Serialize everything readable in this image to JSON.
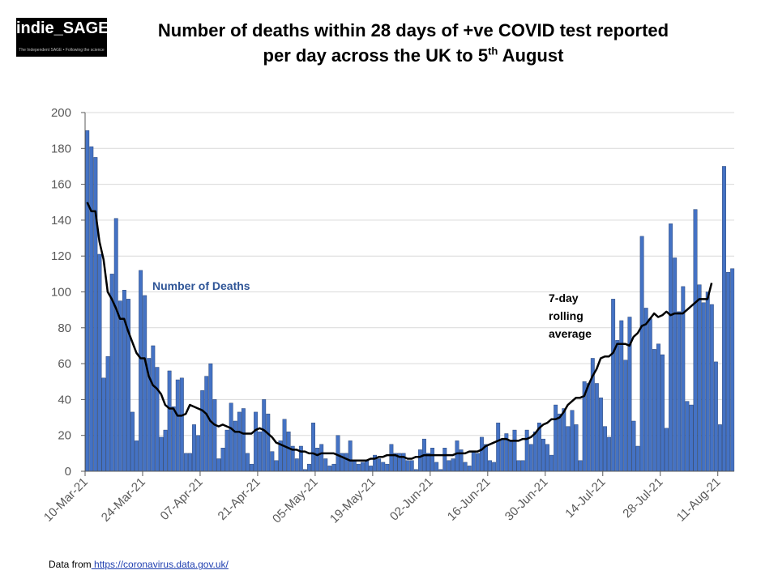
{
  "logo": {
    "text": "indie_SAGE",
    "tagline": "The Independent SAGE • Following the science"
  },
  "title": {
    "line1": "Number of deaths within 28 days of +ve COVID test reported",
    "line2_pre": "per day across the UK to 5",
    "line2_sup": "th",
    "line2_post": " August"
  },
  "footer": {
    "prefix": "Data from",
    "link": " https://coronavirus.data.gov.uk/"
  },
  "colors": {
    "bar_fill": "#4472c4",
    "bar_edge": "#1f3864",
    "line": "#000000",
    "series_label": "#2f5597",
    "grid": "#d9d9d9"
  },
  "chart_data": {
    "type": "bar",
    "title": "Number of deaths within 28 days of +ve COVID test reported per day across the UK to 5th August",
    "xlabel": "",
    "ylabel": "",
    "ylim": [
      0,
      200
    ],
    "yticks": [
      0,
      20,
      40,
      60,
      80,
      100,
      120,
      140,
      160,
      180,
      200
    ],
    "grid": true,
    "x_start_date": "10-Mar-21",
    "x_tick_labels": [
      "10-Mar-21",
      "24-Mar-21",
      "07-Apr-21",
      "21-Apr-21",
      "05-May-21",
      "19-May-21",
      "02-Jun-21",
      "16-Jun-21",
      "30-Jun-21",
      "14-Jul-21",
      "28-Jul-21",
      "11-Aug-21"
    ],
    "series": [
      {
        "name": "Number of Deaths",
        "type": "bar",
        "values": [
          190,
          181,
          175,
          121,
          52,
          64,
          110,
          141,
          95,
          101,
          96,
          33,
          17,
          112,
          98,
          63,
          70,
          58,
          19,
          23,
          56,
          36,
          51,
          52,
          10,
          10,
          26,
          20,
          45,
          53,
          60,
          40,
          7,
          13,
          23,
          38,
          28,
          33,
          35,
          10,
          4,
          33,
          22,
          40,
          32,
          11,
          6,
          17,
          29,
          22,
          14,
          7,
          14,
          1,
          4,
          27,
          13,
          15,
          7,
          3,
          4,
          20,
          10,
          10,
          17,
          6,
          4,
          5,
          6,
          3,
          9,
          7,
          5,
          4,
          15,
          10,
          10,
          10,
          6,
          6,
          1,
          12,
          18,
          10,
          13,
          5,
          1,
          13,
          6,
          7,
          17,
          12,
          5,
          3,
          11,
          10,
          19,
          15,
          6,
          5,
          27,
          18,
          21,
          17,
          23,
          6,
          6,
          23,
          15,
          22,
          27,
          18,
          15,
          9,
          37,
          32,
          35,
          25,
          34,
          26,
          6,
          50,
          49,
          63,
          49,
          41,
          25,
          19,
          96,
          73,
          84,
          62,
          86,
          28,
          14,
          131,
          91,
          85,
          68,
          71,
          65,
          24,
          138,
          119,
          89,
          103,
          39,
          37,
          146,
          104,
          94,
          100,
          93,
          61,
          26,
          170,
          111,
          113
        ]
      },
      {
        "name": "7-day rolling average",
        "type": "line",
        "values": [
          150,
          145,
          145,
          128,
          118,
          100,
          96,
          91,
          85,
          85,
          78,
          72,
          66,
          63,
          63,
          53,
          48,
          46,
          43,
          37,
          35,
          35,
          31,
          31,
          32,
          37,
          36,
          35,
          34,
          32,
          28,
          26,
          25,
          26,
          25,
          24,
          22,
          22,
          21,
          21,
          21,
          23,
          24,
          23,
          21,
          19,
          16,
          15,
          14,
          13,
          12,
          12,
          11,
          11,
          10,
          10,
          9,
          10,
          10,
          10,
          10,
          9,
          8,
          7,
          6,
          6,
          6,
          6,
          6,
          7,
          7,
          8,
          8,
          9,
          9,
          9,
          8,
          8,
          7,
          7,
          8,
          8,
          9,
          9,
          9,
          9,
          9,
          9,
          9,
          9,
          10,
          10,
          10,
          11,
          11,
          11,
          12,
          14,
          15,
          16,
          17,
          18,
          18,
          17,
          17,
          17,
          18,
          18,
          19,
          21,
          24,
          26,
          27,
          29,
          29,
          30,
          33,
          37,
          39,
          41,
          41,
          42,
          48,
          53,
          57,
          63,
          64,
          64,
          66,
          71,
          71,
          71,
          70,
          75,
          77,
          81,
          82,
          85,
          88,
          86,
          87,
          89,
          87,
          88,
          88,
          88,
          90,
          92,
          94,
          96,
          96,
          96,
          105
        ]
      }
    ],
    "annotations": [
      "Number of Deaths",
      "7-day\nrolling\naverage"
    ]
  }
}
